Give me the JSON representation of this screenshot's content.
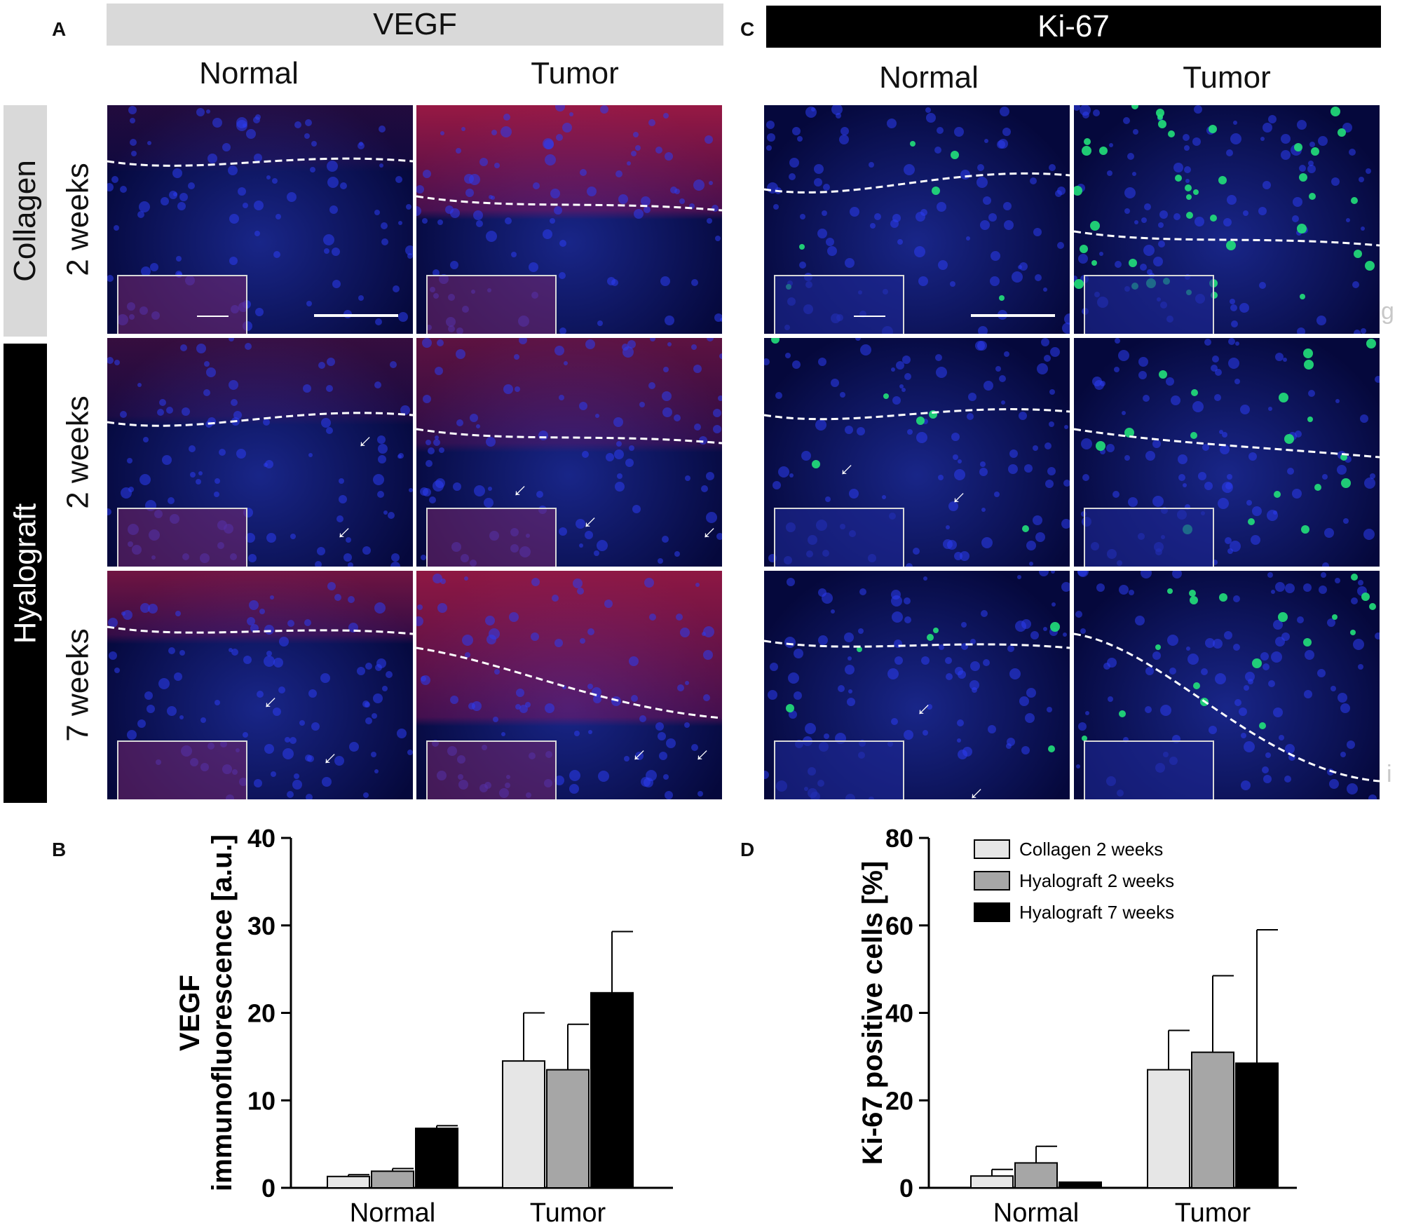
{
  "panels": {
    "A": {
      "letter": "A",
      "title": "VEGF",
      "cols": [
        "Normal",
        "Tumor"
      ]
    },
    "B": {
      "letter": "B"
    },
    "C": {
      "letter": "C",
      "title": "Ki-67",
      "cols": [
        "Normal",
        "Tumor"
      ]
    },
    "D": {
      "letter": "D"
    }
  },
  "row_groups": {
    "collagen": "Collagen",
    "hyalograft": "Hyalograft"
  },
  "row_labels": [
    "2 weeks",
    "2 weeks",
    "7 weeks"
  ],
  "side_marks": [
    "g",
    "i"
  ],
  "colors": {
    "collagen_2w": "#e6e6e6",
    "hyalograft_2w": "#a6a6a6",
    "hyalograft_7w": "#000000",
    "vegf_stain": "#e0203a",
    "ki67_stain": "#22e07a",
    "dapi": "#1e2fd0"
  },
  "chart_data": [
    {
      "id": "B",
      "type": "bar",
      "categories": [
        "Normal",
        "Tumor"
      ],
      "ylabel_line1": "VEGF",
      "ylabel_line2": "immunofluorescence  [a.u.]",
      "ylim": [
        0,
        40
      ],
      "yticks": [
        "0",
        "10",
        "20",
        "30",
        "40"
      ],
      "series": [
        {
          "name": "Collagen 2 weeks",
          "values": [
            1.3,
            14.5
          ],
          "error": [
            0.2,
            5.5
          ]
        },
        {
          "name": "Hyalograft 2 weeks",
          "values": [
            1.9,
            13.5
          ],
          "error": [
            0.3,
            5.2
          ]
        },
        {
          "name": "Hyalograft 7 weeks",
          "values": [
            6.8,
            22.3
          ],
          "error": [
            0.3,
            7.0
          ]
        }
      ]
    },
    {
      "id": "D",
      "type": "bar",
      "categories": [
        "Normal",
        "Tumor"
      ],
      "ylabel_line1": "Ki-67  positive  cells  [%]",
      "ylim": [
        0,
        80
      ],
      "yticks": [
        "0",
        "20",
        "40",
        "60",
        "80"
      ],
      "legend": [
        "Collagen 2 weeks",
        "Hyalograft 2 weeks",
        "Hyalograft 7 weeks"
      ],
      "legend_position": "top",
      "series": [
        {
          "name": "Collagen 2 weeks",
          "values": [
            2.7,
            27.0
          ],
          "error": [
            1.5,
            9.0
          ]
        },
        {
          "name": "Hyalograft 2 weeks",
          "values": [
            5.7,
            31.0
          ],
          "error": [
            3.8,
            17.5
          ]
        },
        {
          "name": "Hyalograft 7 weeks",
          "values": [
            1.3,
            28.5
          ],
          "error": [
            0.0,
            30.5
          ]
        }
      ]
    }
  ]
}
